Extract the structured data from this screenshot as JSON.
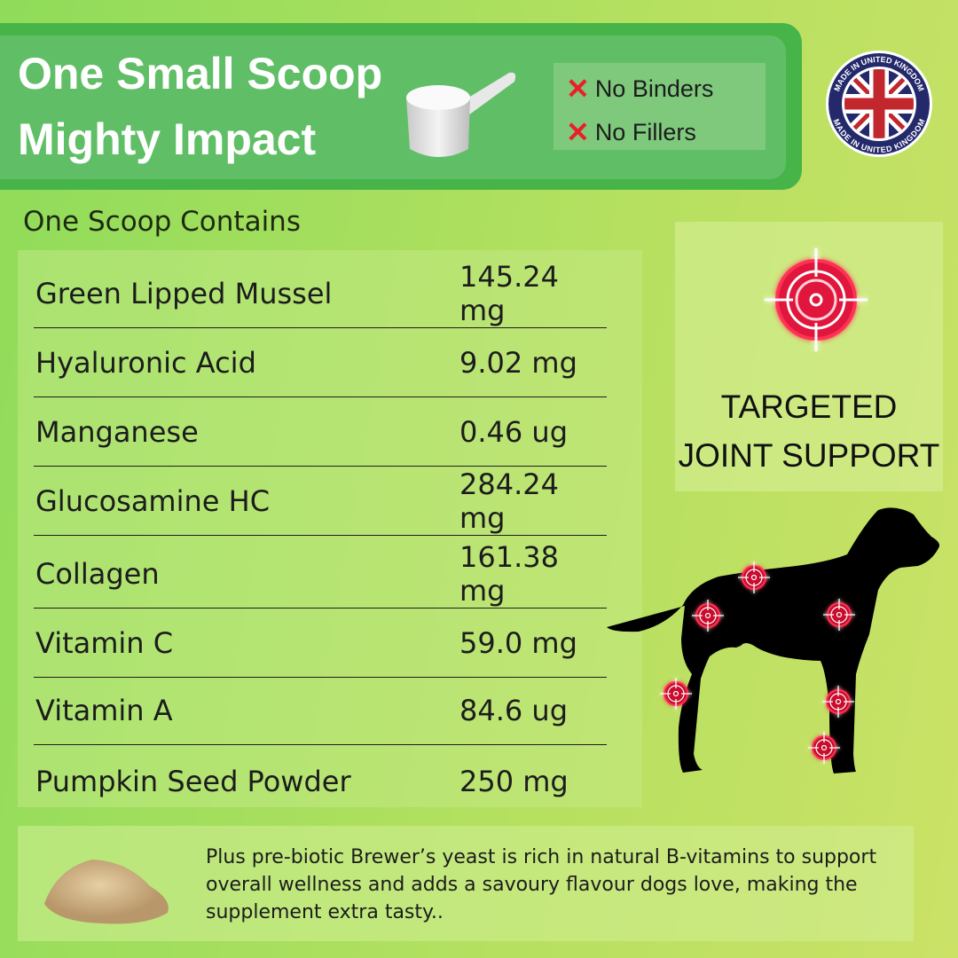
{
  "banner": {
    "title_line1": "One Small Scoop",
    "title_line2": "Mighty Impact",
    "claims": [
      "No Binders",
      "No Fillers"
    ],
    "claim_icon": "cross-icon",
    "badge_text": "MADE IN UNITED KINGDOM"
  },
  "section_title": "One Scoop Contains",
  "ingredients": [
    {
      "name": "Green Lipped Mussel",
      "amount": "145.24 mg"
    },
    {
      "name": "Hyaluronic Acid",
      "amount": "9.02 mg"
    },
    {
      "name": "Manganese",
      "amount": "0.46 ug"
    },
    {
      "name": "Glucosamine HC",
      "amount": "284.24 mg"
    },
    {
      "name": "Collagen",
      "amount": "161.38 mg"
    },
    {
      "name": "Vitamin C",
      "amount": "59.0 mg"
    },
    {
      "name": "Vitamin A",
      "amount": "84.6 ug"
    },
    {
      "name": "Pumpkin Seed Powder",
      "amount": "250 mg"
    }
  ],
  "target": {
    "line1": "TARGETED",
    "line2": "JOINT SUPPORT",
    "icon": "crosshair-target-icon"
  },
  "footer_text": "Plus pre-biotic Brewer’s yeast is rich in natural B-vitamins to support overall wellness and adds a savoury flavour dogs love, making the supplement extra tasty..",
  "colors": {
    "banner": "#47b449",
    "accent_red": "#e8202a",
    "target_glow": "#ff2a55"
  }
}
